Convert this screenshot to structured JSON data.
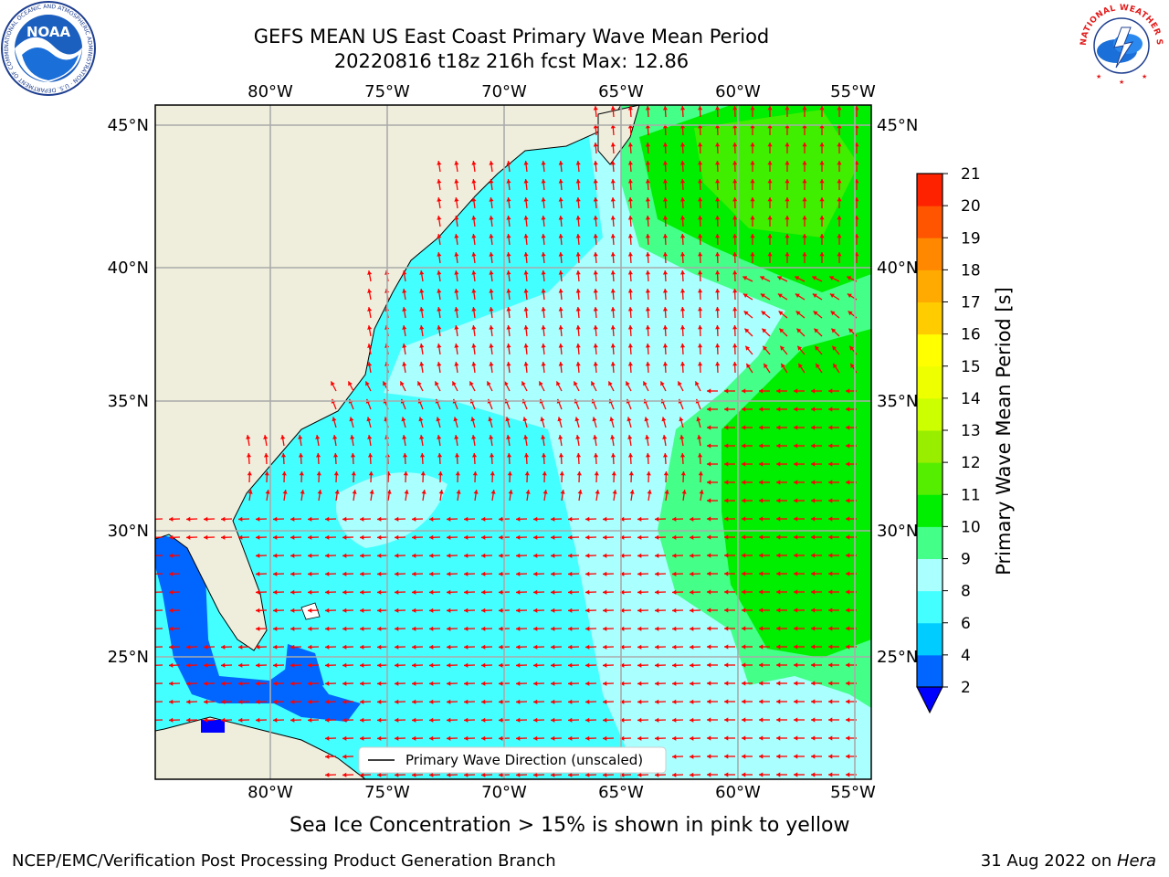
{
  "header": {
    "title_line1": "GEFS MEAN US East Coast Primary Wave Mean Period",
    "title_line2": "20220816 t18z 216h fcst   Max: 12.86",
    "noaa_logo_text": "NOAA",
    "noaa_ring_text": "NATIONAL OCEANIC AND ATMOSPHERIC ADMINISTRATION · U.S. DEPARTMENT OF COMMERCE",
    "nws_ring_text": "NATIONAL WEATHER SERVICE"
  },
  "map": {
    "lon_labels": [
      "80°W",
      "75°W",
      "70°W",
      "65°W",
      "60°W",
      "55°W"
    ],
    "lat_labels": [
      "45°N",
      "40°N",
      "35°N",
      "30°N",
      "25°N"
    ],
    "legend_label": "Primary Wave Direction (unscaled)",
    "colors": {
      "land": "#efeedd",
      "arrow": "#ff0000",
      "grid": "#aaaaaa"
    }
  },
  "colorbar": {
    "label": "Primary Wave Mean Period [s]",
    "ticks": [
      "2",
      "4",
      "6",
      "8",
      "9",
      "10",
      "11",
      "12",
      "13",
      "14",
      "15",
      "16",
      "17",
      "18",
      "19",
      "20",
      "21"
    ],
    "colors": [
      "#0066ff",
      "#00ccff",
      "#44ffff",
      "#aaffff",
      "#44ff88",
      "#00ee00",
      "#55ee00",
      "#99ee00",
      "#ccff00",
      "#eeff00",
      "#ffff00",
      "#ffcc00",
      "#ffaa00",
      "#ff8800",
      "#ff5500",
      "#ff2200",
      "#ff0000"
    ],
    "under_color": "#0000ff"
  },
  "caption": "Sea Ice Concentration > 15% is shown in pink to yellow",
  "footer": {
    "left": "NCEP/EMC/Verification Post Processing Product Generation Branch",
    "right_date": "31 Aug 2022 on ",
    "right_machine": "Hera"
  }
}
